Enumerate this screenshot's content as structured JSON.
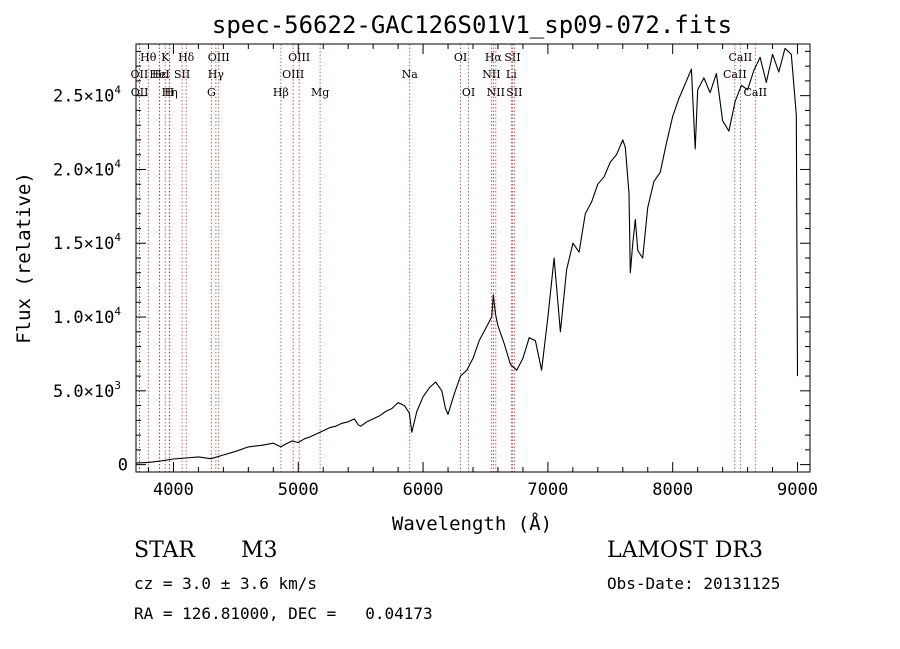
{
  "chart_data": {
    "type": "line",
    "title": "spec-56622-GAC126S01V1_sp09-072.fits",
    "xlabel": "Wavelength (Å)",
    "ylabel": "Flux (relative)",
    "xlim": [
      3700,
      9100
    ],
    "ylim": [
      -500,
      28500
    ],
    "xticks": [
      4000,
      5000,
      6000,
      7000,
      8000,
      9000
    ],
    "xtick_labels": [
      "4000",
      "5000",
      "6000",
      "7000",
      "8000",
      "9000"
    ],
    "yticks": [
      {
        "value": 0,
        "mant": "0",
        "exp": ""
      },
      {
        "value": 5000,
        "mant": "5.0×10",
        "exp": "3"
      },
      {
        "value": 10000,
        "mant": "1.0×10",
        "exp": "4"
      },
      {
        "value": 15000,
        "mant": "1.5×10",
        "exp": "4"
      },
      {
        "value": 20000,
        "mant": "2.0×10",
        "exp": "4"
      },
      {
        "value": 25000,
        "mant": "2.5×10",
        "exp": "4"
      }
    ],
    "series": [
      {
        "name": "flux",
        "x": [
          3700,
          3800,
          3900,
          4000,
          4100,
          4200,
          4300,
          4400,
          4500,
          4600,
          4700,
          4800,
          4860,
          4900,
          4950,
          5000,
          5050,
          5100,
          5150,
          5200,
          5250,
          5300,
          5350,
          5400,
          5450,
          5480,
          5500,
          5550,
          5600,
          5650,
          5700,
          5750,
          5800,
          5850,
          5890,
          5910,
          5950,
          6000,
          6050,
          6100,
          6150,
          6180,
          6200,
          6250,
          6300,
          6350,
          6400,
          6450,
          6500,
          6550,
          6563,
          6580,
          6600,
          6650,
          6700,
          6750,
          6800,
          6850,
          6900,
          6950,
          7000,
          7050,
          7100,
          7150,
          7200,
          7250,
          7300,
          7350,
          7400,
          7450,
          7500,
          7550,
          7600,
          7620,
          7650,
          7660,
          7680,
          7700,
          7720,
          7760,
          7800,
          7850,
          7900,
          7950,
          8000,
          8050,
          8100,
          8150,
          8180,
          8200,
          8250,
          8300,
          8350,
          8400,
          8450,
          8500,
          8550,
          8600,
          8650,
          8700,
          8750,
          8800,
          8850,
          8900,
          8950,
          8990,
          9000
        ],
        "y": [
          100,
          150,
          250,
          380,
          450,
          520,
          400,
          650,
          900,
          1200,
          1300,
          1450,
          1200,
          1400,
          1600,
          1500,
          1750,
          1900,
          2100,
          2300,
          2500,
          2600,
          2800,
          2900,
          3100,
          2700,
          2600,
          2900,
          3100,
          3300,
          3600,
          3800,
          4200,
          4000,
          3500,
          2200,
          3600,
          4600,
          5200,
          5600,
          5000,
          3800,
          3400,
          4800,
          6000,
          6400,
          7200,
          8400,
          9200,
          10000,
          11500,
          10200,
          9400,
          8200,
          6800,
          6400,
          7200,
          8600,
          8400,
          6400,
          10000,
          14000,
          9000,
          13200,
          15000,
          14400,
          17000,
          17800,
          19000,
          19500,
          20500,
          21000,
          22000,
          21500,
          18400,
          13000,
          15000,
          16600,
          14500,
          14000,
          17400,
          19200,
          19800,
          21800,
          23600,
          24800,
          25800,
          26800,
          21400,
          25400,
          26200,
          25200,
          26500,
          23300,
          22600,
          24600,
          25700,
          25400,
          26700,
          27600,
          25900,
          27800,
          26600,
          28200,
          27800,
          23700,
          6000
        ]
      }
    ],
    "line_markers": [
      {
        "label": "Hθ",
        "wl": 3798,
        "row": 1
      },
      {
        "label": "OII",
        "wl": 3727,
        "row": 2
      },
      {
        "label": "OII",
        "wl": 3729,
        "row": 3
      },
      {
        "label": "Hε",
        "wl": 3889,
        "row": 2
      },
      {
        "label": "Hη",
        "wl": 3970,
        "row": 3
      },
      {
        "label": "K",
        "wl": 3934,
        "row": 1
      },
      {
        "label": "HeI",
        "wl": 3889,
        "row": 2
      },
      {
        "label": "H",
        "wl": 3968,
        "row": 3
      },
      {
        "label": "Hδ",
        "wl": 4102,
        "row": 1
      },
      {
        "label": "SII",
        "wl": 4069,
        "row": 2
      },
      {
        "label": "OIII",
        "wl": 4363,
        "row": 1
      },
      {
        "label": "Hγ",
        "wl": 4340,
        "row": 2
      },
      {
        "label": "G",
        "wl": 4304,
        "row": 3
      },
      {
        "label": "Hβ",
        "wl": 4861,
        "row": 3
      },
      {
        "label": "OIII",
        "wl": 5007,
        "row": 1
      },
      {
        "label": "OIII",
        "wl": 4959,
        "row": 2
      },
      {
        "label": "Mg",
        "wl": 5175,
        "row": 3
      },
      {
        "label": "Na",
        "wl": 5893,
        "row": 2
      },
      {
        "label": "OI",
        "wl": 6300,
        "row": 1
      },
      {
        "label": "OI",
        "wl": 6364,
        "row": 3
      },
      {
        "label": "Hα",
        "wl": 6563,
        "row": 1
      },
      {
        "label": "NII",
        "wl": 6548,
        "row": 2
      },
      {
        "label": "NII",
        "wl": 6583,
        "row": 3
      },
      {
        "label": "SII",
        "wl": 6716,
        "row": 1
      },
      {
        "label": "Li",
        "wl": 6707,
        "row": 2
      },
      {
        "label": "SII",
        "wl": 6731,
        "row": 3
      },
      {
        "label": "CaII",
        "wl": 8542,
        "row": 1
      },
      {
        "label": "CaII",
        "wl": 8498,
        "row": 2
      },
      {
        "label": "CaII",
        "wl": 8662,
        "row": 3
      }
    ]
  },
  "info": {
    "object_class": "STAR",
    "subclass": "M3",
    "survey": "LAMOST DR3",
    "cz": "cz = 3.0 ± 3.6 km/s",
    "obs_date": "Obs-Date: 20131125",
    "coords": "RA = 126.81000, DEC =   0.04173"
  }
}
